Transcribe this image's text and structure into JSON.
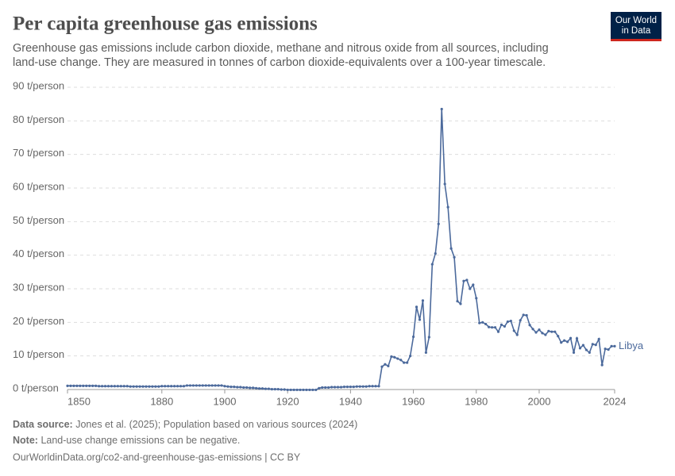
{
  "chart_data": {
    "type": "line",
    "title": "Per capita greenhouse gas emissions",
    "subtitle": [
      "Greenhouse gas emissions include carbon dioxide, methane and nitrous oxide from all sources, including",
      "land-use change. They are measured in tonnes of carbon dioxide-equivalents over a 100-year timescale."
    ],
    "logo": [
      "Our World",
      "in Data"
    ],
    "x": [
      1850,
      1851,
      1852,
      1853,
      1854,
      1855,
      1856,
      1857,
      1858,
      1859,
      1860,
      1861,
      1862,
      1863,
      1864,
      1865,
      1866,
      1867,
      1868,
      1869,
      1870,
      1871,
      1872,
      1873,
      1874,
      1875,
      1876,
      1877,
      1878,
      1879,
      1880,
      1881,
      1882,
      1883,
      1884,
      1885,
      1886,
      1887,
      1888,
      1889,
      1890,
      1891,
      1892,
      1893,
      1894,
      1895,
      1896,
      1897,
      1898,
      1899,
      1900,
      1901,
      1902,
      1903,
      1904,
      1905,
      1906,
      1907,
      1908,
      1909,
      1910,
      1911,
      1912,
      1913,
      1914,
      1915,
      1916,
      1917,
      1918,
      1919,
      1920,
      1921,
      1922,
      1923,
      1924,
      1925,
      1926,
      1927,
      1928,
      1929,
      1930,
      1931,
      1932,
      1933,
      1934,
      1935,
      1936,
      1937,
      1938,
      1939,
      1940,
      1941,
      1942,
      1943,
      1944,
      1945,
      1946,
      1947,
      1948,
      1949,
      1950,
      1951,
      1952,
      1953,
      1954,
      1955,
      1956,
      1957,
      1958,
      1959,
      1960,
      1961,
      1962,
      1963,
      1964,
      1965,
      1966,
      1967,
      1968,
      1969,
      1970,
      1971,
      1972,
      1973,
      1974,
      1975,
      1976,
      1977,
      1978,
      1979,
      1980,
      1981,
      1982,
      1983,
      1984,
      1985,
      1986,
      1987,
      1988,
      1989,
      1990,
      1991,
      1992,
      1993,
      1994,
      1995,
      1996,
      1997,
      1998,
      1999,
      2000,
      2001,
      2002,
      2003,
      2004,
      2005,
      2006,
      2007,
      2008,
      2009,
      2010,
      2011,
      2012,
      2013,
      2014,
      2015,
      2016,
      2017,
      2018,
      2019,
      2020,
      2021,
      2022,
      2023,
      2024
    ],
    "series": [
      {
        "name": "Libya",
        "color": "#4c6a9c",
        "values": [
          1.1,
          1.1,
          1.1,
          1.1,
          1.1,
          1.1,
          1.1,
          1.1,
          1.1,
          1.1,
          1.0,
          1.0,
          1.0,
          1.0,
          1.0,
          1.0,
          1.0,
          1.0,
          1.0,
          1.0,
          0.9,
          0.9,
          0.9,
          0.9,
          0.9,
          0.9,
          0.9,
          0.9,
          0.9,
          0.9,
          1.0,
          1.0,
          1.0,
          1.0,
          1.0,
          1.0,
          1.0,
          1.0,
          1.2,
          1.2,
          1.2,
          1.2,
          1.2,
          1.2,
          1.2,
          1.2,
          1.2,
          1.2,
          1.2,
          1.2,
          1.0,
          0.9,
          0.8,
          0.8,
          0.7,
          0.7,
          0.6,
          0.6,
          0.5,
          0.5,
          0.4,
          0.3,
          0.3,
          0.2,
          0.2,
          0.1,
          0.1,
          0.1,
          0.0,
          0.0,
          -0.1,
          -0.1,
          -0.1,
          -0.1,
          -0.1,
          -0.1,
          -0.1,
          -0.1,
          -0.1,
          -0.1,
          0.4,
          0.6,
          0.6,
          0.6,
          0.7,
          0.7,
          0.7,
          0.7,
          0.8,
          0.8,
          0.8,
          0.8,
          0.9,
          0.9,
          0.9,
          0.9,
          1.0,
          1.0,
          1.0,
          1.0,
          6.8,
          7.5,
          7.0,
          9.8,
          9.6,
          9.2,
          8.8,
          8.0,
          8.0,
          10.0,
          15.7,
          24.6,
          20.8,
          26.5,
          11.0,
          15.6,
          37.3,
          40.5,
          49.3,
          83.5,
          61.2,
          54.3,
          42.0,
          39.4,
          26.3,
          25.5,
          32.3,
          32.6,
          30.0,
          31.2,
          27.2,
          19.8,
          20.0,
          19.5,
          18.6,
          18.5,
          18.5,
          17.2,
          19.3,
          18.8,
          20.2,
          20.4,
          17.5,
          16.3,
          20.6,
          22.2,
          22.1,
          19.2,
          18.0,
          17.0,
          17.8,
          16.8,
          16.3,
          17.4,
          17.2,
          17.2,
          15.9,
          14.0,
          14.6,
          14.2,
          15.3,
          11.0,
          15.2,
          12.3,
          13.2,
          11.8,
          11.0,
          13.5,
          13.3,
          15.0,
          7.3,
          12.1,
          11.9,
          12.9,
          12.9
        ]
      }
    ],
    "xlim": [
      1850,
      2024
    ],
    "xticks": [
      1850,
      1880,
      1900,
      1920,
      1940,
      1960,
      1980,
      2000,
      2024
    ],
    "ylim": [
      0,
      90
    ],
    "yticks": [
      {
        "value": 0,
        "label": "0 t/person"
      },
      {
        "value": 10,
        "label": "10 t/person"
      },
      {
        "value": 20,
        "label": "20 t/person"
      },
      {
        "value": 30,
        "label": "30 t/person"
      },
      {
        "value": 40,
        "label": "40 t/person"
      },
      {
        "value": 50,
        "label": "50 t/person"
      },
      {
        "value": 60,
        "label": "60 t/person"
      },
      {
        "value": 70,
        "label": "70 t/person"
      },
      {
        "value": 80,
        "label": "80 t/person"
      },
      {
        "value": 90,
        "label": "90 t/person"
      }
    ],
    "grid": true,
    "source_label": "Data source:",
    "source": "Jones et al. (2025); Population based on various sources (2024)",
    "note_label": "Note:",
    "note": "Land-use change emissions can be negative.",
    "url": "OurWorldinData.org/co2-and-greenhouse-gas-emissions | CC BY"
  }
}
